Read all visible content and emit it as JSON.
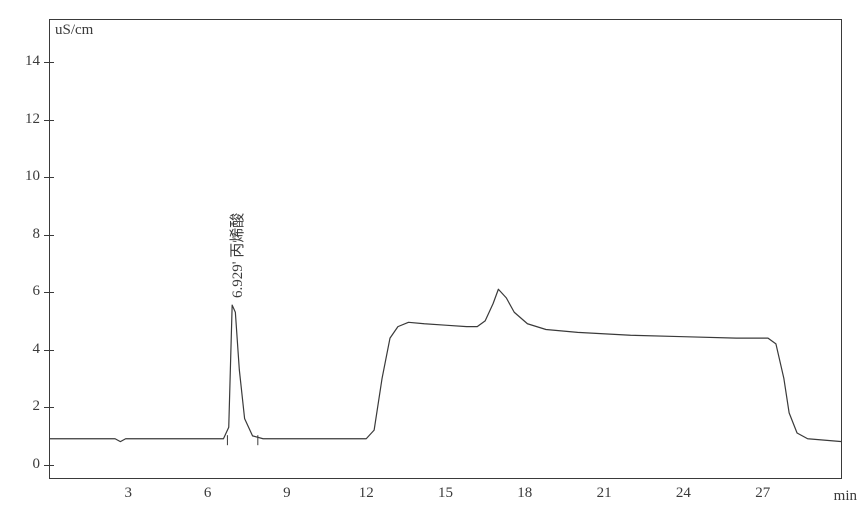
{
  "chromatogram": {
    "type": "line",
    "y_unit": "uS/cm",
    "x_unit": "min",
    "xlim": [
      0,
      30
    ],
    "ylim": [
      -0.5,
      15.5
    ],
    "xticks": [
      3,
      6,
      9,
      12,
      15,
      18,
      21,
      24,
      27
    ],
    "yticks": [
      0,
      2,
      4,
      6,
      8,
      10,
      12,
      14
    ],
    "axis_color": "#3a3a3a",
    "line_color": "#3a3a3a",
    "line_width": 1.2,
    "background_color": "#ffffff",
    "label_fontsize_pt": 12,
    "font_family": "Times New Roman",
    "peak": {
      "rt_label": "6.929",
      "name": "丙烯酸",
      "label_x_min": 6.7,
      "label_y_us": 5.8,
      "integration_marks": [
        {
          "x_min": 6.75,
          "y_us": 0.85
        },
        {
          "x_min": 7.9,
          "y_us": 0.85
        }
      ]
    },
    "trace_points": [
      {
        "x": 0.0,
        "y": 0.9
      },
      {
        "x": 2.5,
        "y": 0.9
      },
      {
        "x": 2.7,
        "y": 0.8
      },
      {
        "x": 2.9,
        "y": 0.9
      },
      {
        "x": 6.6,
        "y": 0.9
      },
      {
        "x": 6.8,
        "y": 1.3
      },
      {
        "x": 6.929,
        "y": 5.55
      },
      {
        "x": 7.05,
        "y": 5.3
      },
      {
        "x": 7.2,
        "y": 3.3
      },
      {
        "x": 7.4,
        "y": 1.6
      },
      {
        "x": 7.7,
        "y": 1.0
      },
      {
        "x": 8.1,
        "y": 0.9
      },
      {
        "x": 12.0,
        "y": 0.9
      },
      {
        "x": 12.3,
        "y": 1.2
      },
      {
        "x": 12.6,
        "y": 3.0
      },
      {
        "x": 12.9,
        "y": 4.4
      },
      {
        "x": 13.2,
        "y": 4.8
      },
      {
        "x": 13.6,
        "y": 4.95
      },
      {
        "x": 14.2,
        "y": 4.9
      },
      {
        "x": 15.0,
        "y": 4.85
      },
      {
        "x": 15.8,
        "y": 4.8
      },
      {
        "x": 16.2,
        "y": 4.8
      },
      {
        "x": 16.5,
        "y": 5.0
      },
      {
        "x": 16.8,
        "y": 5.6
      },
      {
        "x": 17.0,
        "y": 6.1
      },
      {
        "x": 17.3,
        "y": 5.8
      },
      {
        "x": 17.6,
        "y": 5.3
      },
      {
        "x": 18.1,
        "y": 4.9
      },
      {
        "x": 18.8,
        "y": 4.7
      },
      {
        "x": 20.0,
        "y": 4.6
      },
      {
        "x": 22.0,
        "y": 4.5
      },
      {
        "x": 24.0,
        "y": 4.45
      },
      {
        "x": 26.0,
        "y": 4.4
      },
      {
        "x": 27.2,
        "y": 4.4
      },
      {
        "x": 27.5,
        "y": 4.2
      },
      {
        "x": 27.8,
        "y": 3.0
      },
      {
        "x": 28.0,
        "y": 1.8
      },
      {
        "x": 28.3,
        "y": 1.1
      },
      {
        "x": 28.7,
        "y": 0.9
      },
      {
        "x": 30.0,
        "y": 0.8
      }
    ]
  }
}
